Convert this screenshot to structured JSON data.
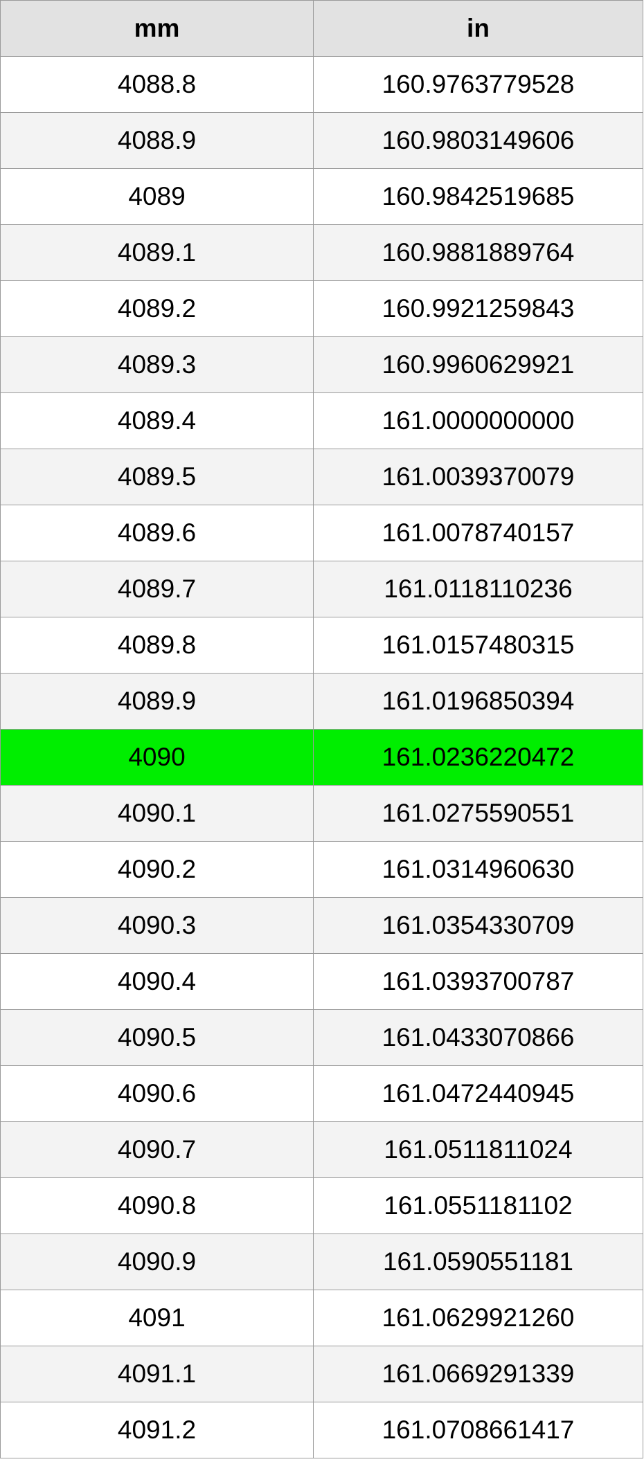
{
  "table": {
    "header": [
      "mm",
      "in"
    ],
    "rows": [
      [
        "4088.8",
        "160.9763779528"
      ],
      [
        "4088.9",
        "160.9803149606"
      ],
      [
        "4089",
        "160.9842519685"
      ],
      [
        "4089.1",
        "160.9881889764"
      ],
      [
        "4089.2",
        "160.9921259843"
      ],
      [
        "4089.3",
        "160.9960629921"
      ],
      [
        "4089.4",
        "161.0000000000"
      ],
      [
        "4089.5",
        "161.0039370079"
      ],
      [
        "4089.6",
        "161.0078740157"
      ],
      [
        "4089.7",
        "161.0118110236"
      ],
      [
        "4089.8",
        "161.0157480315"
      ],
      [
        "4089.9",
        "161.0196850394"
      ],
      [
        "4090",
        "161.0236220472"
      ],
      [
        "4090.1",
        "161.0275590551"
      ],
      [
        "4090.2",
        "161.0314960630"
      ],
      [
        "4090.3",
        "161.0354330709"
      ],
      [
        "4090.4",
        "161.0393700787"
      ],
      [
        "4090.5",
        "161.0433070866"
      ],
      [
        "4090.6",
        "161.0472440945"
      ],
      [
        "4090.7",
        "161.0511811024"
      ],
      [
        "4090.8",
        "161.0551181102"
      ],
      [
        "4090.9",
        "161.0590551181"
      ],
      [
        "4091",
        "161.0629921260"
      ],
      [
        "4091.1",
        "161.0669291339"
      ],
      [
        "4091.2",
        "161.0708661417"
      ]
    ]
  }
}
